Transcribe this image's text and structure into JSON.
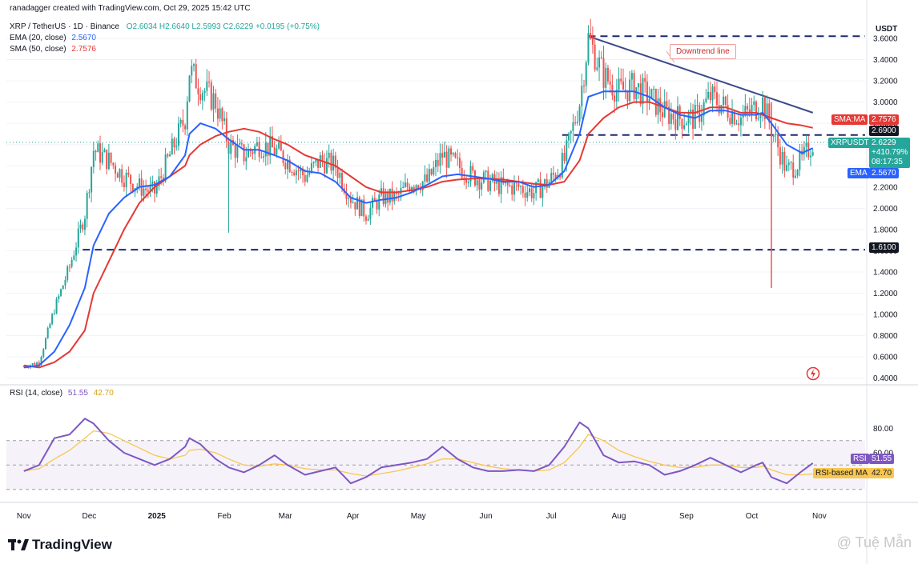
{
  "header": {
    "author_line": "ranadagger created with TradingView.com, Oct 29, 2025 15:42 UTC",
    "symbol": "XRP / TetherUS · 1D · Binance",
    "ohlc": "O2.6034  H2.6640  L2.5993  C2.6229  +0.0195 (+0.75%)",
    "ema_label": "EMA (20, close)",
    "ema_value": "2.5670",
    "sma_label": "SMA (50, close)",
    "sma_value": "2.7576",
    "rsi_label": "RSI (14, close)",
    "rsi_value": "51.55",
    "rsi_ma_value": "42.70"
  },
  "axis": {
    "currency": "USDT",
    "price_ticks": [
      "3.6000",
      "3.4000",
      "3.2000",
      "3.0000",
      "2.8000",
      "2.6000",
      "2.4000",
      "2.2000",
      "2.0000",
      "1.8000",
      "1.6000",
      "1.4000",
      "1.2000",
      "1.0000",
      "0.8000",
      "0.6000",
      "0.4000"
    ],
    "rsi_ticks": [
      "80.00",
      "60.00"
    ],
    "time_ticks": [
      "Nov",
      "Dec",
      "2025",
      "Feb",
      "Mar",
      "Apr",
      "May",
      "Jun",
      "Jul",
      "Aug",
      "Sep",
      "Oct",
      "Nov"
    ]
  },
  "labels": {
    "sma_tag": "SMA:MA",
    "sma_val": "2.7576",
    "resistance": "2.6900",
    "symbol_tag": "XRPUSDT",
    "price": "2.6229",
    "change": "+410.79%",
    "countdown": "08:17:35",
    "ema_tag": "EMA",
    "ema_val": "2.5670",
    "support": "1.6100",
    "rsi_tag": "RSI",
    "rsi_val": "51.55",
    "rsi_ma_tag": "RSI-based MA",
    "rsi_ma_val": "42.70",
    "downtrend": "Downtrend line"
  },
  "brand": "TradingView",
  "watermark": "@ Tuệ Mẫn",
  "colors": {
    "up": "#26a69a",
    "down": "#ef5350",
    "ema": "#2962ff",
    "sma": "#e53935",
    "rsi": "#7e57c2",
    "rsi_ma": "#f9c74f",
    "level": "#1e2a6e",
    "trendline": "#3c4a8a"
  },
  "chart_data": {
    "type": "line",
    "title": "XRP / TetherUS · 1D · Binance",
    "x": [
      "2024-11-01",
      "2024-11-08",
      "2024-11-15",
      "2024-11-22",
      "2024-11-29",
      "2024-12-03",
      "2024-12-10",
      "2024-12-17",
      "2024-12-24",
      "2024-12-31",
      "2025-01-07",
      "2025-01-14",
      "2025-01-16",
      "2025-01-21",
      "2025-01-28",
      "2025-02-03",
      "2025-02-10",
      "2025-02-17",
      "2025-02-24",
      "2025-03-02",
      "2025-03-10",
      "2025-03-17",
      "2025-03-24",
      "2025-03-31",
      "2025-04-07",
      "2025-04-14",
      "2025-04-21",
      "2025-04-28",
      "2025-05-05",
      "2025-05-12",
      "2025-05-19",
      "2025-05-26",
      "2025-06-02",
      "2025-06-09",
      "2025-06-16",
      "2025-06-23",
      "2025-06-30",
      "2025-07-07",
      "2025-07-14",
      "2025-07-18",
      "2025-07-25",
      "2025-08-01",
      "2025-08-08",
      "2025-08-15",
      "2025-08-22",
      "2025-08-29",
      "2025-09-05",
      "2025-09-12",
      "2025-09-19",
      "2025-09-26",
      "2025-10-03",
      "2025-10-06",
      "2025-10-10",
      "2025-10-17",
      "2025-10-24",
      "2025-10-29"
    ],
    "series": [
      {
        "name": "XRPUSDT",
        "values": [
          0.51,
          0.55,
          1.05,
          1.45,
          1.95,
          2.55,
          2.45,
          2.3,
          2.2,
          2.15,
          2.5,
          2.85,
          3.3,
          3.15,
          3.0,
          2.6,
          2.5,
          2.6,
          2.55,
          2.45,
          2.3,
          2.45,
          2.4,
          2.1,
          1.95,
          2.1,
          2.1,
          2.25,
          2.25,
          2.5,
          2.4,
          2.3,
          2.25,
          2.2,
          2.2,
          2.15,
          2.25,
          2.45,
          3.0,
          3.6,
          3.25,
          3.1,
          3.15,
          3.05,
          2.9,
          2.85,
          2.85,
          3.05,
          2.95,
          2.85,
          2.95,
          3.0,
          2.75,
          2.35,
          2.45,
          2.62
        ]
      },
      {
        "name": "EMA",
        "values": [
          0.5,
          0.52,
          0.65,
          0.9,
          1.25,
          1.65,
          1.95,
          2.1,
          2.2,
          2.22,
          2.3,
          2.5,
          2.7,
          2.8,
          2.75,
          2.65,
          2.55,
          2.55,
          2.5,
          2.45,
          2.35,
          2.33,
          2.25,
          2.1,
          2.05,
          2.08,
          2.1,
          2.15,
          2.22,
          2.3,
          2.32,
          2.3,
          2.28,
          2.25,
          2.25,
          2.2,
          2.22,
          2.35,
          2.7,
          3.05,
          3.1,
          3.1,
          3.1,
          3.05,
          2.95,
          2.88,
          2.85,
          2.92,
          2.92,
          2.88,
          2.88,
          2.9,
          2.8,
          2.6,
          2.52,
          2.567
        ]
      },
      {
        "name": "SMA",
        "values": [
          0.52,
          0.5,
          0.55,
          0.65,
          0.85,
          1.2,
          1.5,
          1.8,
          2.05,
          2.2,
          2.3,
          2.4,
          2.5,
          2.6,
          2.68,
          2.72,
          2.75,
          2.72,
          2.65,
          2.6,
          2.5,
          2.45,
          2.4,
          2.3,
          2.2,
          2.15,
          2.15,
          2.17,
          2.2,
          2.25,
          2.27,
          2.28,
          2.28,
          2.27,
          2.25,
          2.23,
          2.22,
          2.25,
          2.45,
          2.7,
          2.85,
          2.95,
          3.0,
          3.0,
          2.95,
          2.9,
          2.9,
          2.95,
          2.95,
          2.9,
          2.9,
          2.88,
          2.85,
          2.8,
          2.78,
          2.7576
        ]
      }
    ],
    "rsi": {
      "name": "RSI",
      "values": [
        45,
        50,
        72,
        75,
        88,
        84,
        70,
        60,
        55,
        50,
        55,
        65,
        72,
        67,
        55,
        48,
        44,
        50,
        58,
        50,
        42,
        45,
        48,
        35,
        40,
        48,
        50,
        52,
        55,
        65,
        55,
        48,
        45,
        45,
        46,
        45,
        50,
        65,
        85,
        80,
        58,
        52,
        53,
        50,
        42,
        45,
        50,
        56,
        50,
        44,
        50,
        52,
        40,
        35,
        45,
        51.55
      ]
    },
    "rsi_ma": {
      "name": "RSI-based MA",
      "values": [
        45,
        47,
        55,
        62,
        72,
        78,
        76,
        70,
        64,
        58,
        55,
        58,
        62,
        63,
        60,
        55,
        50,
        49,
        51,
        50,
        47,
        46,
        46,
        43,
        41,
        43,
        45,
        48,
        51,
        55,
        55,
        52,
        49,
        47,
        46,
        45,
        46,
        52,
        65,
        75,
        70,
        62,
        57,
        53,
        50,
        48,
        48,
        50,
        50,
        48,
        48,
        49,
        46,
        42,
        42,
        42.7
      ]
    },
    "levels": [
      3.62,
      2.69,
      1.61
    ],
    "downtrend_line": [
      [
        "2025-07-18",
        3.62
      ],
      [
        "2025-10-29",
        2.9
      ]
    ],
    "ylim": [
      0.36,
      3.66
    ],
    "y_ticks": [
      0.4,
      0.6,
      0.8,
      1.0,
      1.2,
      1.4,
      1.6,
      1.8,
      2.0,
      2.2,
      2.4,
      2.6,
      2.8,
      3.0,
      3.2,
      3.4,
      3.6
    ],
    "rsi_ylim": [
      22,
      100
    ],
    "rsi_bands": [
      30,
      50,
      70
    ],
    "rsi_ticks": [
      80,
      60
    ],
    "x_ticks": [
      "Nov",
      "Dec",
      "2025",
      "Feb",
      "Mar",
      "Apr",
      "May",
      "Jun",
      "Jul",
      "Aug",
      "Sep",
      "Oct",
      "Nov"
    ],
    "grid": true
  }
}
